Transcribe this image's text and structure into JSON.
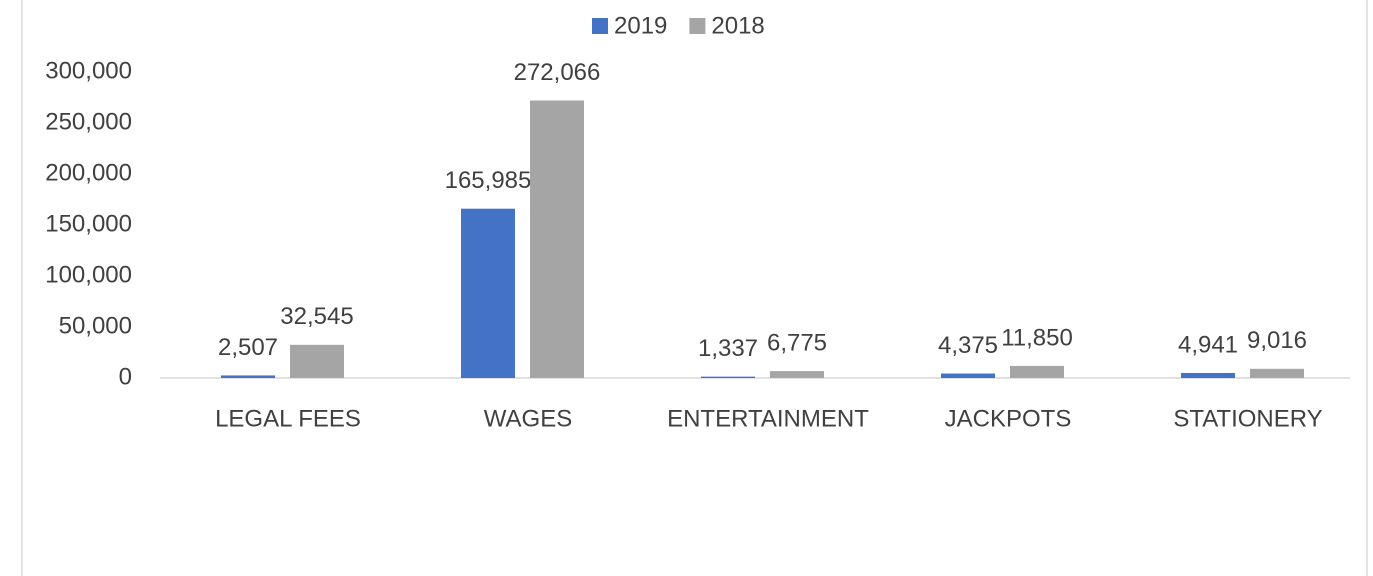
{
  "chart_data": {
    "type": "bar",
    "categories": [
      "LEGAL FEES",
      "WAGES",
      "ENTERTAINMENT",
      "JACKPOTS",
      "STATIONERY"
    ],
    "series": [
      {
        "name": "2019",
        "color": "#4472c4",
        "values": [
          2507,
          165985,
          1337,
          4375,
          4941
        ],
        "value_labels": [
          "2,507",
          "165,985",
          "1,337",
          "4,375",
          "4,941"
        ]
      },
      {
        "name": "2018",
        "color": "#a5a5a5",
        "values": [
          32545,
          272066,
          6775,
          11850,
          9016
        ],
        "value_labels": [
          "32,545",
          "272,066",
          "6,775",
          "11,850",
          "9,016"
        ]
      }
    ],
    "ylim": [
      0,
      300000
    ],
    "yticks": [
      0,
      {
        "value": 50000,
        "label": "50,000"
      },
      {
        "value": 100000,
        "label": "100,000"
      },
      {
        "value": 150000,
        "label": "150,000"
      },
      {
        "value": 200000,
        "label": "200,000"
      },
      {
        "value": 250000,
        "label": "250,000"
      },
      {
        "value": 300000,
        "label": "300,000"
      }
    ],
    "grid": false,
    "legend": "top"
  }
}
